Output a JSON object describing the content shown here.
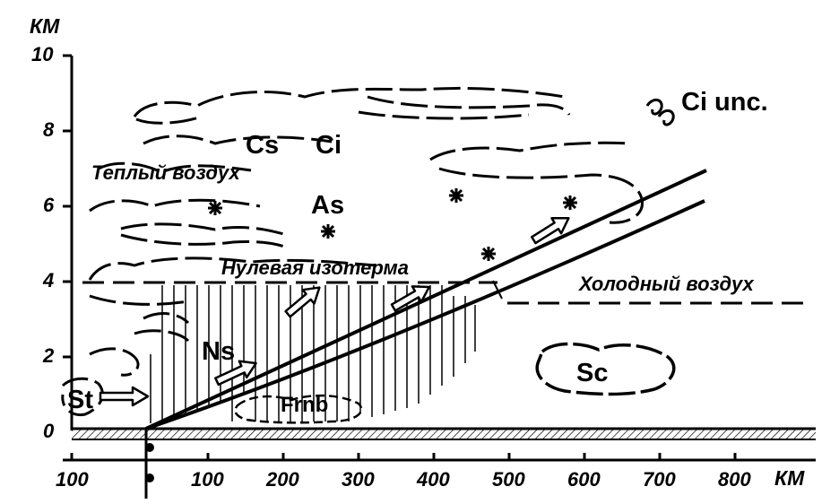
{
  "y_axis": {
    "unit": "КМ",
    "ticks": [
      "0",
      "2",
      "4",
      "6",
      "8",
      "10"
    ]
  },
  "x_axis": {
    "unit": "КМ",
    "ticks": [
      "100",
      "100",
      "200",
      "300",
      "400",
      "500",
      "600",
      "700",
      "800"
    ]
  },
  "labels": {
    "warm_air": "Теплый воздух",
    "cold_air": "Холодный воздух",
    "zero_isotherm": "Нулевая изотерма"
  },
  "clouds": {
    "cs": "Cs",
    "ci": "Ci",
    "ci_unc": "Ci unc.",
    "as": "As",
    "ns": "Ns",
    "st": "St",
    "frnb": "Frnb",
    "sc": "Sc"
  },
  "colors": {
    "ink": "#000000",
    "background": "#ffffff"
  }
}
